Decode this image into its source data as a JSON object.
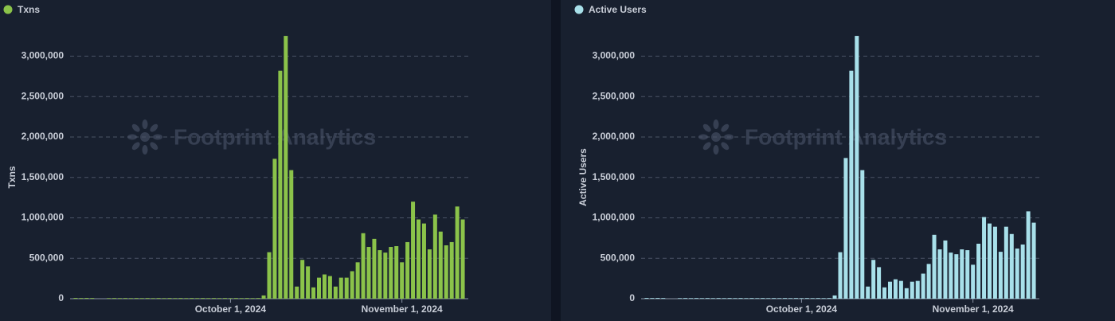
{
  "chart_data": [
    {
      "type": "bar",
      "y_label": "Txns",
      "watermark": "Footprint Analytics",
      "x": [
        "2024-09-03",
        "2024-09-04",
        "2024-09-05",
        "2024-09-06",
        "2024-09-07",
        "2024-09-08",
        "2024-09-09",
        "2024-09-10",
        "2024-09-11",
        "2024-09-12",
        "2024-09-13",
        "2024-09-14",
        "2024-09-15",
        "2024-09-16",
        "2024-09-17",
        "2024-09-18",
        "2024-09-19",
        "2024-09-20",
        "2024-09-21",
        "2024-09-22",
        "2024-09-23",
        "2024-09-24",
        "2024-09-25",
        "2024-09-26",
        "2024-09-27",
        "2024-09-28",
        "2024-09-29",
        "2024-09-30",
        "2024-10-01",
        "2024-10-02",
        "2024-10-03",
        "2024-10-04",
        "2024-10-05",
        "2024-10-06",
        "2024-10-07",
        "2024-10-08",
        "2024-10-09",
        "2024-10-10",
        "2024-10-11",
        "2024-10-12",
        "2024-10-13",
        "2024-10-14",
        "2024-10-15",
        "2024-10-16",
        "2024-10-17",
        "2024-10-18",
        "2024-10-19",
        "2024-10-20",
        "2024-10-21",
        "2024-10-22",
        "2024-10-23",
        "2024-10-24",
        "2024-10-25",
        "2024-10-26",
        "2024-10-27",
        "2024-10-28",
        "2024-10-29",
        "2024-10-30",
        "2024-10-31",
        "2024-11-01",
        "2024-11-02",
        "2024-11-03",
        "2024-11-04",
        "2024-11-05",
        "2024-11-06",
        "2024-11-07",
        "2024-11-08",
        "2024-11-09",
        "2024-11-10",
        "2024-11-11",
        "2024-11-12"
      ],
      "series": [
        {
          "name": "Txns",
          "color": "#8bc34a",
          "values": [
            9000,
            8000,
            9000,
            8000,
            0,
            0,
            7000,
            8000,
            7000,
            8000,
            7000,
            8000,
            7000,
            8000,
            7000,
            8000,
            7000,
            8000,
            7000,
            8000,
            7000,
            8000,
            7000,
            8000,
            7000,
            8000,
            7000,
            8000,
            7000,
            8000,
            7000,
            8000,
            7000,
            8000,
            40000,
            575000,
            1730000,
            2820000,
            3250000,
            1590000,
            150000,
            480000,
            400000,
            140000,
            260000,
            300000,
            280000,
            150000,
            260000,
            260000,
            340000,
            450000,
            810000,
            640000,
            740000,
            600000,
            570000,
            640000,
            650000,
            450000,
            700000,
            1200000,
            980000,
            930000,
            610000,
            1040000,
            830000,
            660000,
            700000,
            1140000,
            980000
          ]
        }
      ],
      "xlim": [
        "2024-09-02",
        "2024-11-13"
      ],
      "xticks": [
        {
          "value": "2024-10-01",
          "label": "October 1, 2024"
        },
        {
          "value": "2024-11-01",
          "label": "November 1, 2024"
        }
      ],
      "ylim": [
        0,
        3300000
      ],
      "yticks": [
        0,
        {
          "value": 500000,
          "label": "500,000"
        },
        {
          "value": 1000000,
          "label": "1,000,000"
        },
        {
          "value": 1500000,
          "label": "1,500,000"
        },
        {
          "value": 2000000,
          "label": "2,000,000"
        },
        {
          "value": 2500000,
          "label": "2,500,000"
        },
        {
          "value": 3000000,
          "label": "3,000,000"
        }
      ],
      "grid": true
    },
    {
      "type": "bar",
      "y_label": "Active Users",
      "watermark": "Footprint Analytics",
      "x": [
        "2024-09-03",
        "2024-09-04",
        "2024-09-05",
        "2024-09-06",
        "2024-09-07",
        "2024-09-08",
        "2024-09-09",
        "2024-09-10",
        "2024-09-11",
        "2024-09-12",
        "2024-09-13",
        "2024-09-14",
        "2024-09-15",
        "2024-09-16",
        "2024-09-17",
        "2024-09-18",
        "2024-09-19",
        "2024-09-20",
        "2024-09-21",
        "2024-09-22",
        "2024-09-23",
        "2024-09-24",
        "2024-09-25",
        "2024-09-26",
        "2024-09-27",
        "2024-09-28",
        "2024-09-29",
        "2024-09-30",
        "2024-10-01",
        "2024-10-02",
        "2024-10-03",
        "2024-10-04",
        "2024-10-05",
        "2024-10-06",
        "2024-10-07",
        "2024-10-08",
        "2024-10-09",
        "2024-10-10",
        "2024-10-11",
        "2024-10-12",
        "2024-10-13",
        "2024-10-14",
        "2024-10-15",
        "2024-10-16",
        "2024-10-17",
        "2024-10-18",
        "2024-10-19",
        "2024-10-20",
        "2024-10-21",
        "2024-10-22",
        "2024-10-23",
        "2024-10-24",
        "2024-10-25",
        "2024-10-26",
        "2024-10-27",
        "2024-10-28",
        "2024-10-29",
        "2024-10-30",
        "2024-10-31",
        "2024-11-01",
        "2024-11-02",
        "2024-11-03",
        "2024-11-04",
        "2024-11-05",
        "2024-11-06",
        "2024-11-07",
        "2024-11-08",
        "2024-11-09",
        "2024-11-10",
        "2024-11-11",
        "2024-11-12"
      ],
      "series": [
        {
          "name": "Active Users",
          "color": "#a8e0ea",
          "values": [
            9000,
            8000,
            9000,
            8000,
            0,
            0,
            7000,
            8000,
            7000,
            8000,
            7000,
            8000,
            7000,
            8000,
            7000,
            8000,
            7000,
            8000,
            7000,
            8000,
            7000,
            8000,
            7000,
            8000,
            7000,
            8000,
            7000,
            8000,
            7000,
            8000,
            7000,
            8000,
            7000,
            8000,
            40000,
            575000,
            1740000,
            2820000,
            3250000,
            1590000,
            150000,
            480000,
            390000,
            140000,
            210000,
            240000,
            220000,
            130000,
            210000,
            220000,
            310000,
            430000,
            790000,
            610000,
            720000,
            570000,
            550000,
            610000,
            600000,
            420000,
            680000,
            1010000,
            930000,
            890000,
            580000,
            890000,
            800000,
            620000,
            670000,
            1080000,
            940000
          ]
        }
      ],
      "xlim": [
        "2024-09-02",
        "2024-11-13"
      ],
      "xticks": [
        {
          "value": "2024-10-01",
          "label": "October 1, 2024"
        },
        {
          "value": "2024-11-01",
          "label": "November 1, 2024"
        }
      ],
      "ylim": [
        0,
        3300000
      ],
      "yticks": [
        0,
        {
          "value": 500000,
          "label": "500,000"
        },
        {
          "value": 1000000,
          "label": "1,000,000"
        },
        {
          "value": 1500000,
          "label": "1,500,000"
        },
        {
          "value": 2000000,
          "label": "2,000,000"
        },
        {
          "value": 2500000,
          "label": "2,500,000"
        },
        {
          "value": 3000000,
          "label": "3,000,000"
        }
      ],
      "grid": true
    }
  ]
}
